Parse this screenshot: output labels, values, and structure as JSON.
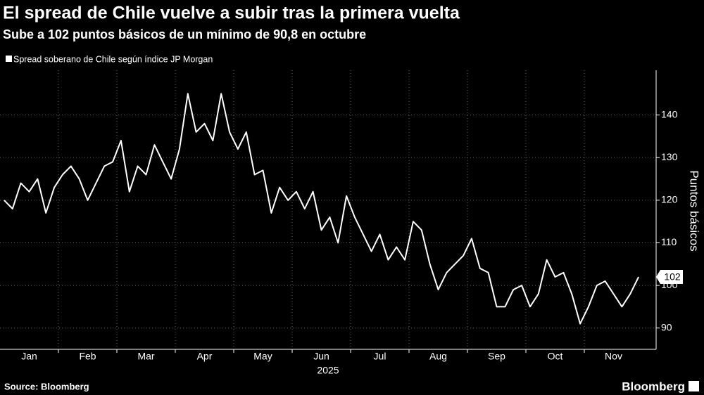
{
  "chart_data": {
    "type": "line",
    "title": "El spread de Chile vuelve a subir tras la primera vuelta",
    "subtitle": "Sube a 102 puntos básicos de un mínimo de 90,8 en octubre",
    "y_axis_label": "Puntos básicos",
    "year_label": "2025",
    "source": "Source: Bloomberg",
    "brand": "Bloomberg",
    "categories": [
      null,
      null,
      null,
      "Jan",
      null,
      null,
      null,
      null,
      null,
      null,
      "Feb",
      null,
      null,
      null,
      null,
      null,
      null,
      "Mar",
      null,
      null,
      null,
      null,
      null,
      null,
      "Apr",
      null,
      null,
      null,
      null,
      null,
      null,
      "May",
      null,
      null,
      null,
      null,
      null,
      null,
      "Jun",
      null,
      null,
      null,
      null,
      null,
      null,
      "Jul",
      null,
      null,
      null,
      null,
      null,
      null,
      "Aug",
      null,
      null,
      null,
      null,
      null,
      null,
      "Sep",
      null,
      null,
      null,
      null,
      null,
      null,
      "Oct",
      null,
      null,
      null,
      null,
      null,
      null,
      "Nov",
      null,
      null,
      null
    ],
    "series": [
      {
        "name": "Spread soberano de Chile según índice JP Morgan",
        "color": "#ffffff",
        "values": [
          120,
          118,
          124,
          122,
          125,
          117,
          123,
          126,
          128,
          125,
          120,
          124,
          128,
          129,
          134,
          122,
          128,
          126,
          133,
          129,
          125,
          132,
          145,
          136,
          138,
          134,
          145,
          136,
          132,
          136,
          126,
          127,
          117,
          123,
          120,
          122,
          118,
          122,
          113,
          116,
          110,
          121,
          116,
          112,
          108,
          112,
          106,
          109,
          106,
          115,
          113,
          105,
          99,
          103,
          105,
          107,
          111,
          104,
          103,
          95,
          95,
          99,
          100,
          95,
          98,
          106,
          102,
          103,
          98,
          91,
          95,
          100,
          101,
          98,
          95,
          98,
          102
        ],
        "last_label": "102"
      }
    ],
    "ylim": [
      85,
      150.5
    ],
    "yticks": [
      90,
      100,
      110,
      120,
      130,
      140
    ],
    "grid": true
  }
}
